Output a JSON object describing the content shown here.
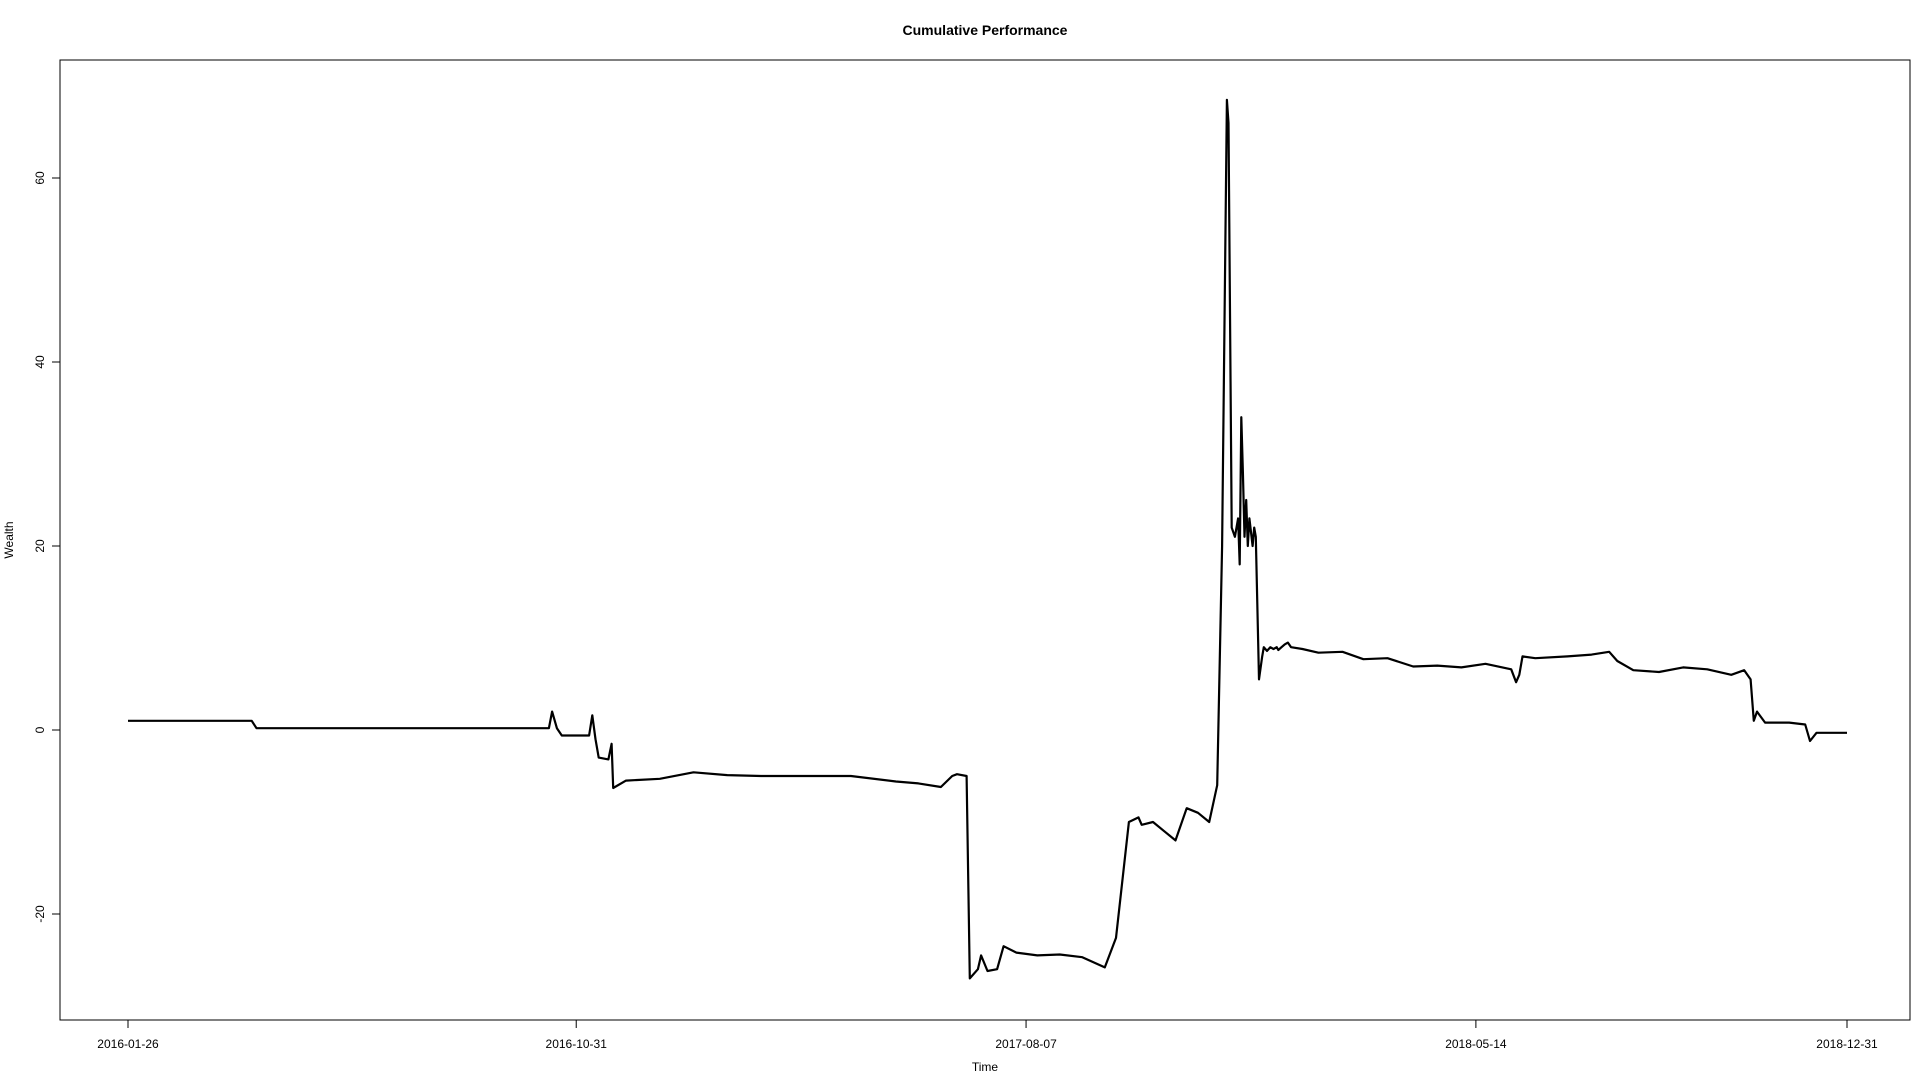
{
  "chart_data": {
    "type": "line",
    "title": "Cumulative Performance",
    "xlabel": "Time",
    "ylabel": "Wealth",
    "x_tick_labels": [
      "2016-01-26",
      "2016-10-31",
      "2017-08-07",
      "2018-05-14",
      "2018-12-31"
    ],
    "y_ticks": [
      -20,
      0,
      20,
      40,
      60
    ],
    "xlim": [
      "2016-01-26",
      "2018-12-31"
    ],
    "ylim": [
      -30,
      70
    ],
    "grid": false,
    "legend": "none",
    "line_color": "#000000",
    "series": [
      {
        "x": [
          "2016-01-26",
          "2016-04-12",
          "2016-04-15",
          "2016-10-14",
          "2016-10-16",
          "2016-10-19",
          "2016-10-22",
          "2016-11-08",
          "2016-11-10",
          "2016-11-12",
          "2016-11-14",
          "2016-11-20",
          "2016-11-22",
          "2016-11-23",
          "2016-12-01",
          "2016-12-22",
          "2017-01-12",
          "2017-02-02",
          "2017-02-23",
          "2017-03-23",
          "2017-04-20",
          "2017-05-18",
          "2017-06-01",
          "2017-06-15",
          "2017-06-22",
          "2017-06-25",
          "2017-07-01",
          "2017-07-03",
          "2017-07-08",
          "2017-07-10",
          "2017-07-14",
          "2017-07-20",
          "2017-07-24",
          "2017-08-01",
          "2017-08-14",
          "2017-08-28",
          "2017-09-11",
          "2017-09-25",
          "2017-10-02",
          "2017-10-10",
          "2017-10-16",
          "2017-10-18",
          "2017-10-25",
          "2017-11-01",
          "2017-11-08",
          "2017-11-15",
          "2017-11-22",
          "2017-11-29",
          "2017-12-04",
          "2017-12-07",
          "2017-12-10",
          "2017-12-11",
          "2017-12-13",
          "2017-12-15",
          "2017-12-17",
          "2017-12-18",
          "2017-12-19",
          "2017-12-20",
          "2017-12-21",
          "2017-12-22",
          "2017-12-23",
          "2017-12-24",
          "2017-12-26",
          "2017-12-27",
          "2017-12-28",
          "2017-12-30",
          "2018-01-01",
          "2018-01-02",
          "2018-01-04",
          "2018-01-06",
          "2018-01-08",
          "2018-01-10",
          "2018-01-11",
          "2018-01-13",
          "2018-01-15",
          "2018-01-17",
          "2018-01-19",
          "2018-01-26",
          "2018-02-05",
          "2018-02-20",
          "2018-03-05",
          "2018-03-20",
          "2018-04-05",
          "2018-04-20",
          "2018-05-05",
          "2018-05-20",
          "2018-06-05",
          "2018-06-08",
          "2018-06-10",
          "2018-06-12",
          "2018-06-20",
          "2018-07-10",
          "2018-07-25",
          "2018-08-05",
          "2018-08-10",
          "2018-08-20",
          "2018-09-05",
          "2018-09-20",
          "2018-10-05",
          "2018-10-20",
          "2018-10-28",
          "2018-11-01",
          "2018-11-03",
          "2018-11-05",
          "2018-11-10",
          "2018-11-25",
          "2018-12-05",
          "2018-12-08",
          "2018-12-12",
          "2018-12-20",
          "2018-12-31"
        ],
        "y": [
          1.0,
          1.0,
          0.2,
          0.2,
          2.0,
          0.2,
          -0.6,
          -0.6,
          1.6,
          -1.0,
          -3.0,
          -3.2,
          -1.5,
          -6.3,
          -5.5,
          -5.3,
          -4.6,
          -4.9,
          -5.0,
          -5.0,
          -5.0,
          -5.6,
          -5.8,
          -6.2,
          -5.0,
          -4.8,
          -5.0,
          -27.0,
          -26.0,
          -24.5,
          -26.2,
          -26.0,
          -23.5,
          -24.2,
          -24.5,
          -24.4,
          -24.7,
          -25.8,
          -22.6,
          -10.0,
          -9.5,
          -10.3,
          -10.0,
          -11.0,
          -12.0,
          -8.5,
          -9.0,
          -10.0,
          -6.0,
          20.0,
          68.5,
          66.0,
          22.0,
          21.0,
          23.0,
          18.0,
          34.0,
          28.0,
          21.0,
          25.0,
          20.0,
          23.0,
          20.0,
          22.0,
          21.0,
          5.5,
          8.0,
          9.0,
          8.6,
          9.0,
          8.8,
          9.0,
          8.7,
          9.0,
          9.3,
          9.5,
          9.0,
          8.8,
          8.4,
          8.5,
          7.7,
          7.8,
          6.9,
          7.0,
          6.8,
          7.2,
          6.6,
          5.2,
          6.0,
          8.0,
          7.8,
          8.0,
          8.2,
          8.5,
          7.5,
          6.5,
          6.3,
          6.8,
          6.6,
          6.0,
          6.5,
          5.5,
          1.0,
          2.0,
          0.8,
          0.8,
          0.6,
          -1.2,
          -0.3,
          -0.3,
          -0.3
        ]
      }
    ]
  }
}
